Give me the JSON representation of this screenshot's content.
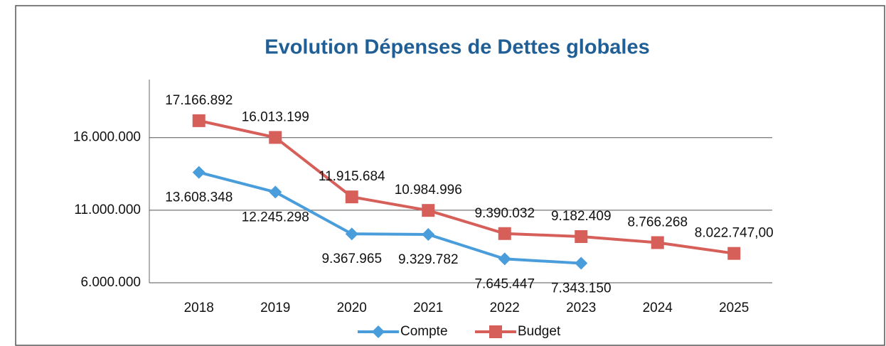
{
  "chart_data": {
    "type": "line",
    "title": "Evolution Dépenses de Dettes globales",
    "categories": [
      "2018",
      "2019",
      "2020",
      "2021",
      "2022",
      "2023",
      "2024",
      "2025"
    ],
    "series": [
      {
        "name": "Compte",
        "color": "#4a9ddb",
        "marker": "diamond",
        "values": [
          13608348,
          12245298,
          9367965,
          9329782,
          7645447,
          7343150,
          null,
          null
        ],
        "value_labels": [
          "13.608.348",
          "12.245.298",
          "9.367.965",
          "9.329.782",
          "7.645.447",
          "7.343.150",
          null,
          null
        ]
      },
      {
        "name": "Budget",
        "color": "#d65f5a",
        "marker": "square",
        "values": [
          17166892,
          16013199,
          11915684,
          10984996,
          9390032,
          9182409,
          8766268,
          8022747
        ],
        "value_labels": [
          "17.166.892",
          "16.013.199",
          "11.915.684",
          "10.984.996",
          "9.390.032",
          "9.182.409",
          "8.766.268",
          "8.022.747,00"
        ]
      }
    ],
    "ylim": [
      6000000,
      20000000
    ],
    "yticks": [
      {
        "value": 6000000,
        "label": "6.000.000"
      },
      {
        "value": 11000000,
        "label": "11.000.000"
      },
      {
        "value": 16000000,
        "label": "16.000.000"
      }
    ],
    "grid": true,
    "legend": "bottom"
  }
}
